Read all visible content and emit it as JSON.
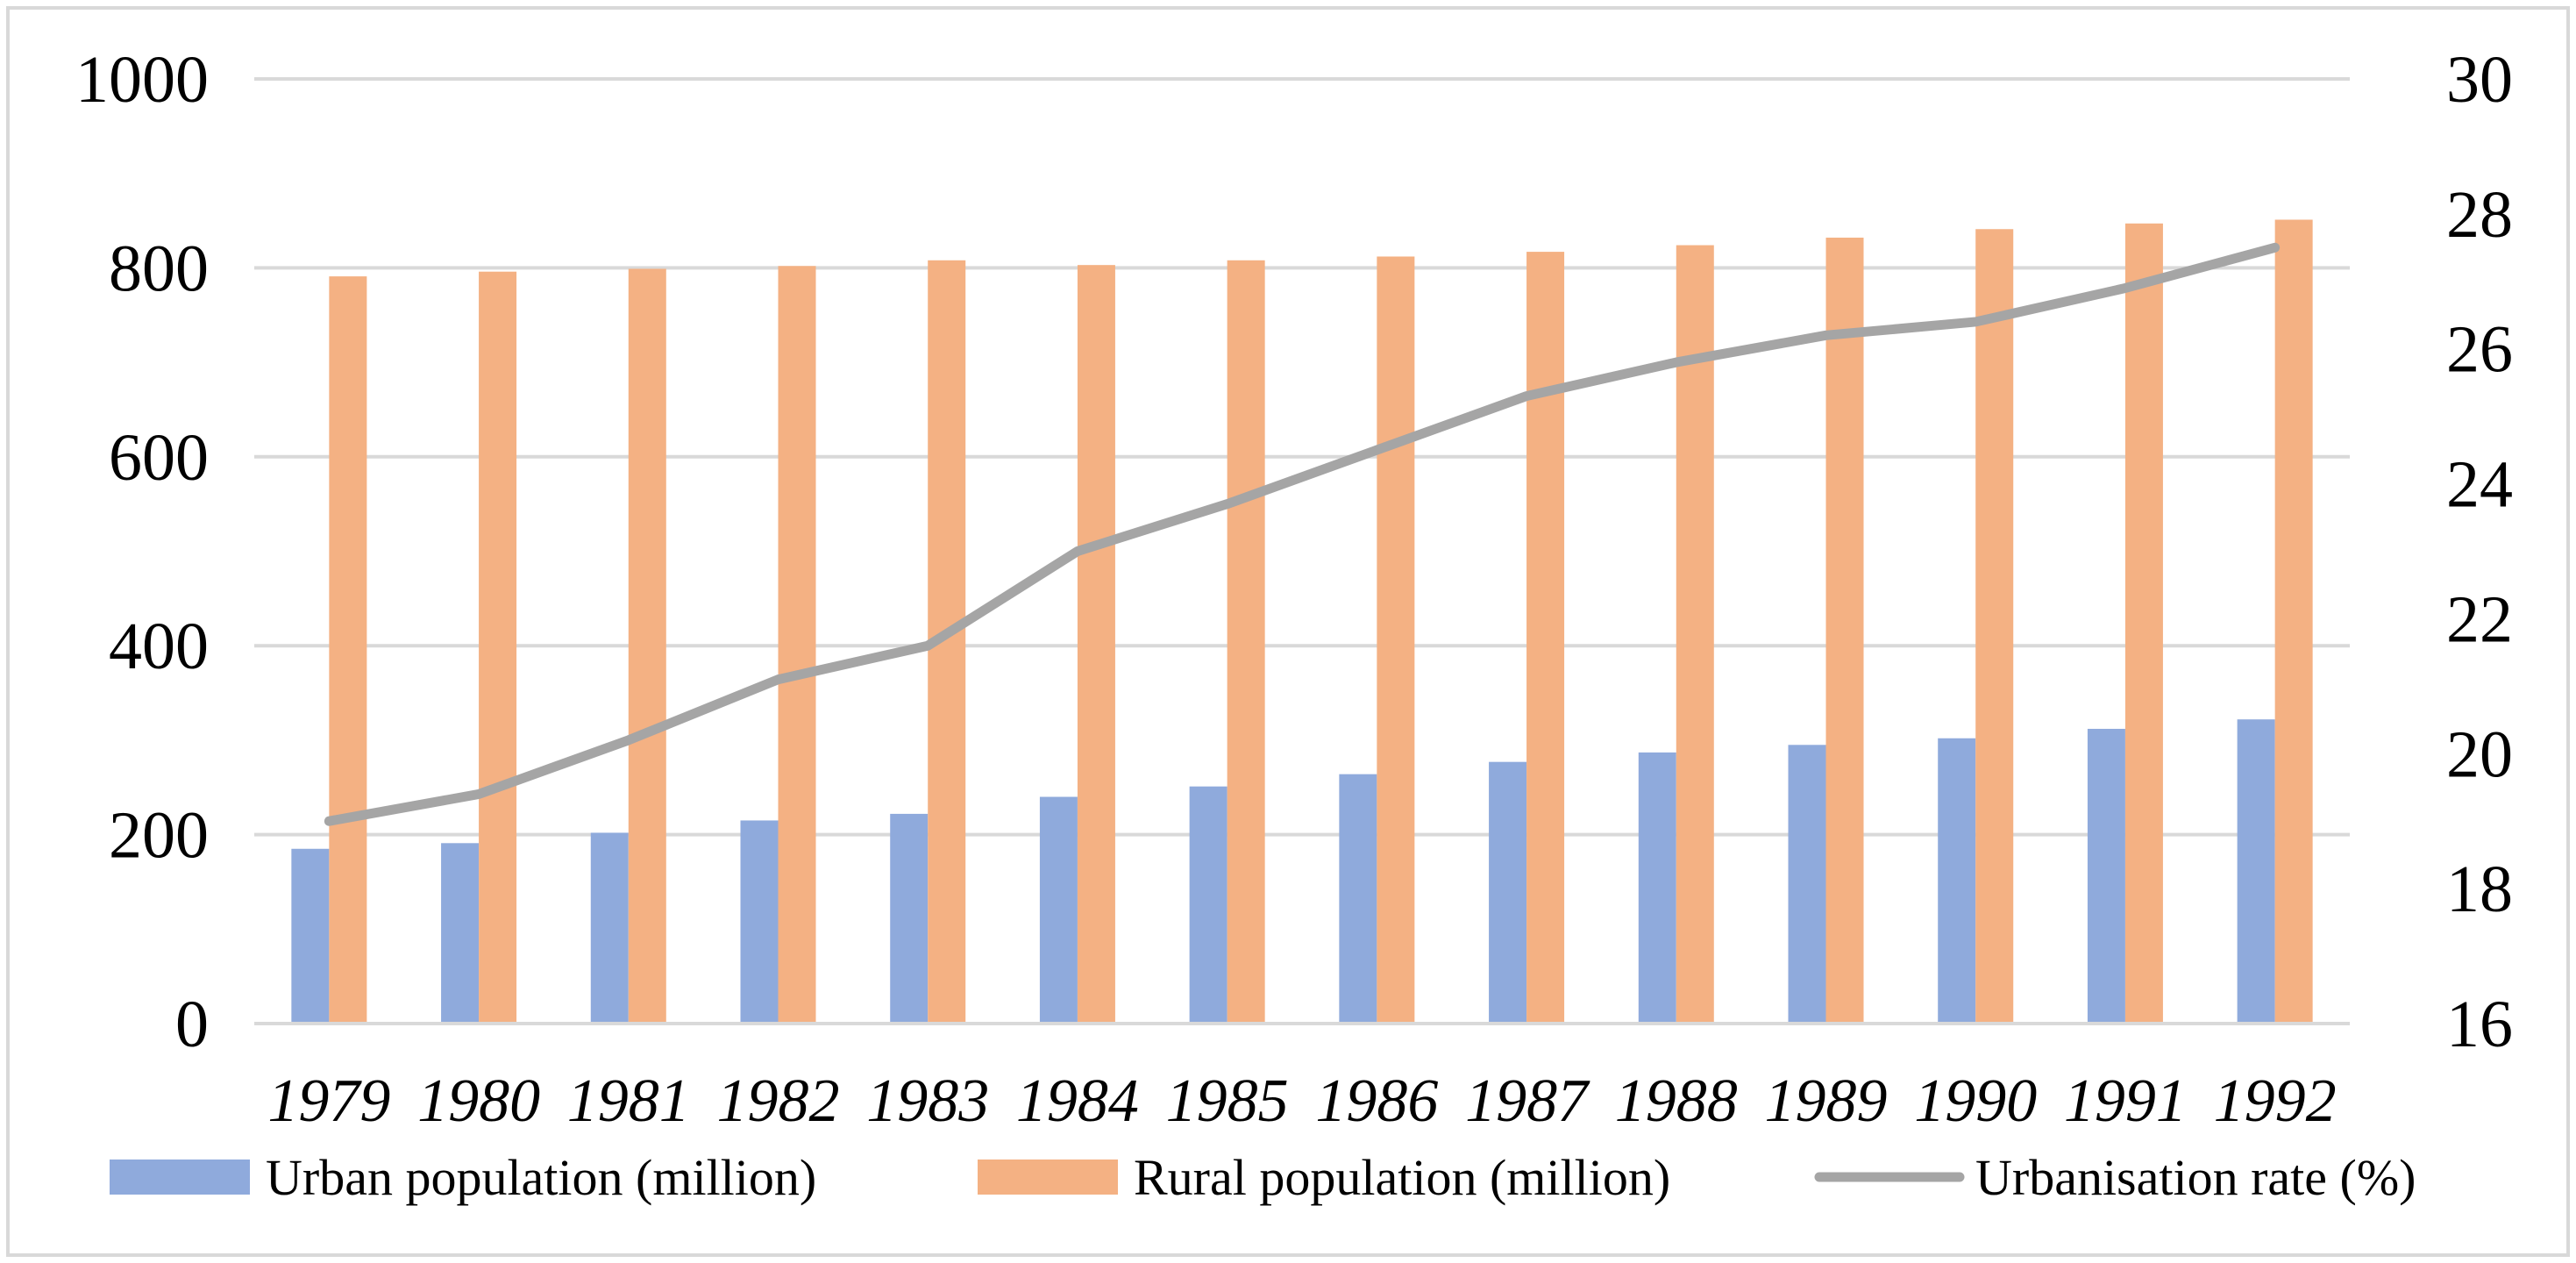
{
  "chart_data": {
    "type": "bar",
    "title": "",
    "xlabel": "",
    "ylabel": "",
    "y2label": "",
    "categories": [
      "1979",
      "1980",
      "1981",
      "1982",
      "1983",
      "1984",
      "1985",
      "1986",
      "1987",
      "1988",
      "1989",
      "1990",
      "1991",
      "1992"
    ],
    "series": [
      {
        "name": "Urban population (million)",
        "kind": "bar",
        "axis": "left",
        "color": "#8faadc",
        "values": [
          185,
          191,
          202,
          215,
          222,
          240,
          251,
          264,
          277,
          287,
          295,
          302,
          312,
          322
        ]
      },
      {
        "name": "Rural population (million)",
        "kind": "bar",
        "axis": "left",
        "color": "#f4b183",
        "values": [
          791,
          796,
          799,
          802,
          808,
          803,
          808,
          812,
          817,
          824,
          832,
          841,
          847,
          851
        ]
      },
      {
        "name": "Urbanisation rate (%)",
        "kind": "line",
        "axis": "right",
        "color": "#a5a5a5",
        "values": [
          19.0,
          19.4,
          20.2,
          21.1,
          21.6,
          23.0,
          23.7,
          24.5,
          25.3,
          25.8,
          26.2,
          26.4,
          26.9,
          27.5
        ]
      }
    ],
    "ylim": [
      0,
      1000
    ],
    "y_ticks": [
      "0",
      "200",
      "400",
      "600",
      "800",
      "1000"
    ],
    "y2lim": [
      16,
      30
    ],
    "y2_ticks": [
      "16",
      "18",
      "20",
      "22",
      "24",
      "26",
      "28",
      "30"
    ],
    "grid": true,
    "legend_position": "bottom"
  }
}
